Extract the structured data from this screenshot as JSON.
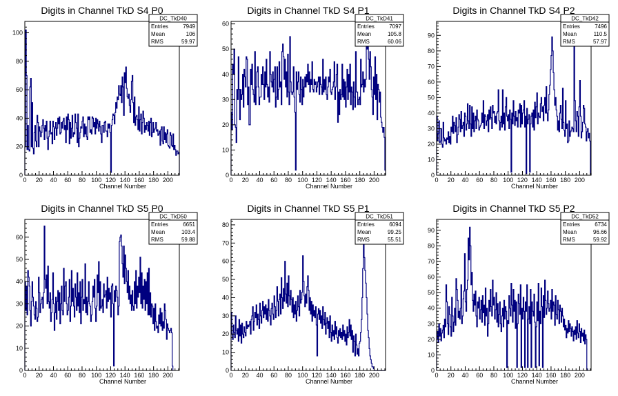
{
  "chart_data": [
    {
      "type": "histogram",
      "title": "Digits in Channel TkD S4 P0",
      "xlabel": "Channel Number",
      "xlim": [
        0,
        216
      ],
      "ylim": [
        0,
        108
      ],
      "xticks": [
        0,
        20,
        40,
        60,
        80,
        100,
        120,
        140,
        160,
        180,
        200
      ],
      "yticks": [
        0,
        20,
        40,
        60,
        80,
        100
      ],
      "stats": {
        "name": "DC_TkD40",
        "entries": "7949",
        "mean": "106",
        "rms": "59.97"
      },
      "values": [
        20,
        102,
        70,
        18,
        35,
        18,
        17,
        62,
        68,
        20,
        51,
        19,
        15,
        30,
        35,
        24,
        20,
        42,
        37,
        20,
        34,
        31,
        27,
        30,
        35,
        39,
        33,
        25,
        35,
        31,
        38,
        26,
        18,
        27,
        31,
        38,
        29,
        30,
        22,
        38,
        34,
        25,
        33,
        37,
        28,
        33,
        40,
        36,
        41,
        29,
        30,
        37,
        33,
        38,
        40,
        32,
        35,
        23,
        41,
        32,
        43,
        39,
        22,
        37,
        26,
        33,
        42,
        27,
        30,
        29,
        43,
        37,
        33,
        23,
        43,
        20,
        26,
        30,
        34,
        33,
        38,
        41,
        27,
        36,
        29,
        34,
        27,
        25,
        41,
        39,
        41,
        30,
        32,
        29,
        41,
        40,
        34,
        37,
        29,
        40,
        33,
        39,
        36,
        31,
        38,
        34,
        29,
        23,
        35,
        35,
        30,
        37,
        38,
        31,
        31,
        27,
        36,
        33,
        36,
        30,
        2,
        35,
        39,
        43,
        42,
        36,
        44,
        51,
        47,
        55,
        53,
        63,
        57,
        56,
        63,
        51,
        69,
        62,
        42,
        72,
        65,
        76,
        61,
        55,
        54,
        57,
        49,
        44,
        53,
        66,
        70,
        51,
        37,
        55,
        35,
        41,
        42,
        39,
        32,
        48,
        31,
        39,
        43,
        29,
        37,
        45,
        40,
        30,
        35,
        32,
        37,
        35,
        31,
        38,
        28,
        37,
        40,
        27,
        30,
        37,
        30,
        32,
        33,
        37,
        31,
        32,
        28,
        29,
        31,
        21,
        32,
        34,
        24,
        22,
        34,
        25,
        30,
        23,
        29,
        32,
        21,
        20,
        19,
        30,
        28,
        21,
        20,
        29,
        18,
        21,
        18,
        14,
        17,
        17,
        15,
        16
      ]
    },
    {
      "type": "histogram",
      "title": "Digits in Channel TkD S4 P1",
      "xlabel": "Channel Number",
      "xlim": [
        0,
        216
      ],
      "ylim": [
        0,
        61
      ],
      "xticks": [
        0,
        20,
        40,
        60,
        80,
        100,
        120,
        140,
        160,
        180,
        200
      ],
      "yticks": [
        0,
        10,
        20,
        30,
        40,
        50,
        60
      ],
      "stats": {
        "name": "DC_TkD41",
        "entries": "7097",
        "mean": "105.8",
        "rms": "60.06"
      },
      "values": [
        25,
        18,
        44,
        40,
        50,
        20,
        19,
        13,
        34,
        30,
        47,
        34,
        22,
        34,
        30,
        32,
        40,
        27,
        42,
        39,
        35,
        47,
        46,
        28,
        35,
        20,
        20,
        42,
        36,
        44,
        34,
        32,
        29,
        49,
        28,
        35,
        41,
        43,
        35,
        28,
        31,
        31,
        40,
        36,
        43,
        36,
        30,
        41,
        35,
        46,
        36,
        31,
        35,
        29,
        49,
        40,
        37,
        35,
        41,
        33,
        38,
        43,
        27,
        31,
        43,
        30,
        34,
        45,
        35,
        37,
        28,
        49,
        52,
        47,
        38,
        46,
        35,
        41,
        31,
        48,
        33,
        28,
        55,
        37,
        33,
        32,
        33,
        43,
        31,
        25,
        2,
        41,
        34,
        37,
        41,
        32,
        29,
        39,
        34,
        28,
        38,
        31,
        35,
        39,
        35,
        40,
        37,
        44,
        36,
        41,
        33,
        38,
        36,
        45,
        34,
        33,
        38,
        36,
        37,
        33,
        35,
        37,
        39,
        32,
        39,
        36,
        35,
        32,
        46,
        33,
        38,
        34,
        39,
        32,
        30,
        35,
        39,
        37,
        42,
        33,
        32,
        34,
        35,
        37,
        45,
        30,
        35,
        40,
        44,
        21,
        33,
        24,
        34,
        30,
        32,
        44,
        31,
        38,
        30,
        37,
        27,
        35,
        42,
        30,
        40,
        33,
        44,
        28,
        35,
        33,
        26,
        37,
        31,
        27,
        49,
        33,
        33,
        28,
        30,
        31,
        28,
        46,
        35,
        36,
        41,
        33,
        38,
        35,
        38,
        55,
        50,
        52,
        46,
        38,
        49,
        43,
        34,
        31,
        24,
        39,
        32,
        47,
        30,
        40,
        22,
        36,
        34,
        29,
        33,
        23,
        21,
        19,
        17,
        19,
        15,
        2
      ]
    },
    {
      "type": "histogram",
      "title": "Digits in Channel TkD S4 P2",
      "xlabel": "Channel Number",
      "xlim": [
        0,
        216
      ],
      "ylim": [
        0,
        99
      ],
      "xticks": [
        0,
        20,
        40,
        60,
        80,
        100,
        120,
        140,
        160,
        180,
        200
      ],
      "yticks": [
        0,
        10,
        20,
        30,
        40,
        50,
        60,
        70,
        80,
        90
      ],
      "stats": {
        "name": "DC_TkD42",
        "entries": "7496",
        "mean": "110.5",
        "rms": "57.97"
      },
      "values": [
        38,
        22,
        27,
        35,
        21,
        22,
        30,
        20,
        18,
        34,
        24,
        22,
        23,
        20,
        24,
        23,
        28,
        21,
        25,
        20,
        31,
        28,
        38,
        27,
        34,
        32,
        28,
        37,
        21,
        26,
        31,
        39,
        36,
        28,
        41,
        30,
        32,
        34,
        25,
        40,
        38,
        29,
        33,
        46,
        35,
        30,
        45,
        33,
        25,
        44,
        30,
        40,
        28,
        35,
        38,
        30,
        42,
        36,
        35,
        29,
        31,
        32,
        33,
        40,
        34,
        48,
        30,
        39,
        38,
        32,
        35,
        39,
        28,
        42,
        36,
        44,
        37,
        30,
        45,
        40,
        41,
        34,
        38,
        33,
        40,
        41,
        55,
        35,
        29,
        34,
        38,
        31,
        55,
        33,
        40,
        29,
        44,
        50,
        38,
        35,
        39,
        30,
        42,
        36,
        2,
        40,
        33,
        48,
        38,
        32,
        41,
        35,
        37,
        31,
        42,
        40,
        46,
        31,
        45,
        33,
        40,
        42,
        48,
        31,
        38,
        1,
        43,
        33,
        36,
        39,
        2,
        33,
        38,
        40,
        31,
        42,
        29,
        47,
        37,
        44,
        53,
        33,
        40,
        38,
        37,
        46,
        50,
        41,
        44,
        35,
        45,
        50,
        40,
        57,
        40,
        35,
        42,
        52,
        58,
        68,
        77,
        89,
        80,
        66,
        55,
        45,
        50,
        42,
        38,
        29,
        35,
        28,
        40,
        45,
        36,
        30,
        56,
        34,
        29,
        25,
        48,
        30,
        33,
        21,
        22,
        35,
        25,
        28,
        29,
        31,
        30,
        28,
        89,
        48,
        35,
        28,
        41,
        38,
        25,
        44,
        61,
        38,
        24,
        28,
        34,
        45,
        43,
        33,
        31,
        22,
        28,
        30,
        24,
        27,
        22,
        1
      ]
    },
    {
      "type": "histogram",
      "title": "Digits in Channel TkD S5 P0",
      "xlabel": "Channel Number",
      "xlim": [
        0,
        216
      ],
      "ylim": [
        0,
        68
      ],
      "xticks": [
        0,
        20,
        40,
        60,
        80,
        100,
        120,
        140,
        160,
        180,
        200
      ],
      "yticks": [
        0,
        10,
        20,
        30,
        40,
        50,
        60
      ],
      "stats": {
        "name": "DC_TkD50",
        "entries": "6651",
        "mean": "103.4",
        "rms": "59.88"
      },
      "values": [
        40,
        27,
        38,
        25,
        45,
        42,
        38,
        27,
        20,
        31,
        40,
        33,
        29,
        25,
        23,
        31,
        28,
        22,
        24,
        42,
        35,
        26,
        30,
        32,
        33,
        28,
        35,
        65,
        41,
        37,
        43,
        30,
        47,
        31,
        28,
        35,
        22,
        26,
        32,
        44,
        30,
        18,
        26,
        33,
        23,
        31,
        36,
        27,
        35,
        21,
        30,
        38,
        27,
        25,
        46,
        31,
        38,
        40,
        30,
        25,
        27,
        33,
        41,
        22,
        29,
        45,
        31,
        37,
        29,
        24,
        39,
        33,
        27,
        44,
        29,
        35,
        26,
        40,
        21,
        33,
        41,
        27,
        32,
        30,
        48,
        26,
        33,
        25,
        31,
        40,
        30,
        29,
        22,
        25,
        31,
        38,
        33,
        41,
        28,
        22,
        29,
        43,
        35,
        49,
        27,
        40,
        28,
        29,
        32,
        26,
        39,
        33,
        34,
        36,
        28,
        42,
        31,
        37,
        32,
        35,
        24,
        38,
        39,
        30,
        2,
        36,
        31,
        38,
        36,
        33,
        25,
        29,
        58,
        60,
        61,
        56,
        48,
        42,
        56,
        39,
        52,
        46,
        40,
        35,
        45,
        32,
        38,
        30,
        34,
        27,
        36,
        29,
        27,
        40,
        30,
        45,
        28,
        38,
        33,
        42,
        35,
        51,
        30,
        44,
        28,
        38,
        32,
        41,
        27,
        40,
        30,
        44,
        25,
        46,
        25,
        35,
        24,
        30,
        29,
        21,
        28,
        18,
        30,
        22,
        19,
        20,
        17,
        25,
        21,
        28,
        20,
        26,
        18,
        22,
        19,
        30,
        27,
        23,
        14,
        21,
        19,
        18,
        17,
        18,
        19,
        17,
        2
      ]
    },
    {
      "type": "histogram",
      "title": "Digits in Channel TkD S5 P1",
      "xlabel": "Channel Number",
      "xlim": [
        0,
        216
      ],
      "ylim": [
        0,
        83
      ],
      "xticks": [
        0,
        20,
        40,
        60,
        80,
        100,
        120,
        140,
        160,
        180,
        200
      ],
      "yticks": [
        0,
        10,
        20,
        30,
        40,
        50,
        60,
        70,
        80
      ],
      "stats": {
        "name": "DC_TkD51",
        "entries": "6094",
        "mean": "99.25",
        "rms": "55.51"
      },
      "values": [
        32,
        20,
        17,
        25,
        21,
        18,
        30,
        22,
        20,
        23,
        16,
        28,
        19,
        25,
        15,
        26,
        20,
        18,
        24,
        21,
        19,
        27,
        23,
        25,
        24,
        25,
        27,
        20,
        28,
        30,
        35,
        22,
        27,
        32,
        29,
        36,
        25,
        31,
        28,
        23,
        37,
        30,
        26,
        33,
        38,
        29,
        35,
        31,
        36,
        28,
        34,
        27,
        39,
        33,
        30,
        25,
        34,
        37,
        31,
        28,
        41,
        35,
        29,
        33,
        46,
        38,
        30,
        39,
        42,
        31,
        51,
        40,
        34,
        45,
        38,
        60,
        42,
        37,
        48,
        35,
        52,
        41,
        36,
        44,
        39,
        32,
        40,
        29,
        36,
        31,
        38,
        27,
        33,
        41,
        35,
        30,
        44,
        37,
        39,
        43,
        63,
        49,
        41,
        35,
        42,
        37,
        46,
        52,
        44,
        33,
        40,
        31,
        38,
        27,
        36,
        30,
        33,
        29,
        35,
        25,
        8,
        31,
        34,
        28,
        33,
        26,
        30,
        23,
        35,
        28,
        25,
        32,
        20,
        26,
        29,
        23,
        27,
        18,
        30,
        21,
        16,
        25,
        19,
        22,
        17,
        27,
        20,
        24,
        18,
        15,
        22,
        19,
        23,
        18,
        21,
        17,
        25,
        19,
        22,
        16,
        20,
        14,
        24,
        18,
        21,
        28,
        19,
        25,
        17,
        22,
        10,
        19,
        16,
        8,
        20,
        14,
        9,
        12,
        8,
        15,
        16,
        21,
        28,
        40,
        56,
        70,
        62,
        55,
        48,
        40,
        31,
        22,
        18,
        12,
        8,
        6,
        4,
        2,
        2,
        1,
        0,
        0,
        0,
        0,
        0,
        0,
        0,
        0,
        0,
        0,
        0,
        0,
        0,
        0,
        0,
        0
      ]
    },
    {
      "type": "histogram",
      "title": "Digits in Channel TkD S5 P2",
      "xlabel": "Channel Number",
      "xlim": [
        0,
        216
      ],
      "ylim": [
        0,
        97
      ],
      "xticks": [
        0,
        20,
        40,
        60,
        80,
        100,
        120,
        140,
        160,
        180,
        200
      ],
      "yticks": [
        0,
        10,
        20,
        30,
        40,
        50,
        60,
        70,
        80,
        90
      ],
      "stats": {
        "name": "DC_TkD52",
        "entries": "6734",
        "mean": "96.66",
        "rms": "59.92"
      },
      "values": [
        20,
        25,
        18,
        30,
        22,
        27,
        19,
        24,
        26,
        29,
        21,
        33,
        28,
        55,
        44,
        30,
        23,
        41,
        36,
        28,
        22,
        47,
        35,
        25,
        31,
        40,
        29,
        59,
        52,
        45,
        34,
        38,
        33,
        40,
        55,
        30,
        35,
        46,
        51,
        75,
        44,
        38,
        52,
        58,
        85,
        71,
        92,
        80,
        55,
        63,
        45,
        38,
        49,
        42,
        51,
        35,
        28,
        44,
        40,
        47,
        33,
        39,
        45,
        31,
        48,
        37,
        42,
        29,
        53,
        35,
        40,
        22,
        30,
        45,
        38,
        52,
        41,
        35,
        58,
        42,
        47,
        33,
        39,
        50,
        31,
        43,
        28,
        36,
        44,
        30,
        25,
        35,
        40,
        28,
        45,
        33,
        41,
        38,
        2,
        32,
        30,
        48,
        40,
        35,
        56,
        42,
        31,
        52,
        38,
        45,
        27,
        44,
        2,
        30,
        49,
        43,
        36,
        55,
        2,
        40,
        33,
        47,
        38,
        2,
        44,
        38,
        55,
        2,
        33,
        41,
        30,
        52,
        2,
        44,
        38,
        35,
        49,
        31,
        2,
        28,
        44,
        32,
        56,
        3,
        38,
        30,
        53,
        41,
        2,
        48,
        34,
        58,
        45,
        36,
        40,
        51,
        43,
        38,
        40,
        45,
        33,
        52,
        38,
        44,
        42,
        29,
        48,
        36,
        33,
        45,
        39,
        30,
        42,
        38,
        31,
        40,
        35,
        28,
        33,
        26,
        29,
        21,
        27,
        24,
        32,
        25,
        30,
        27,
        22,
        28,
        25,
        19,
        26,
        23,
        28,
        20,
        32,
        24,
        21,
        30,
        25,
        18,
        27,
        22,
        24,
        19,
        26,
        17,
        23,
        20,
        1
      ]
    }
  ]
}
